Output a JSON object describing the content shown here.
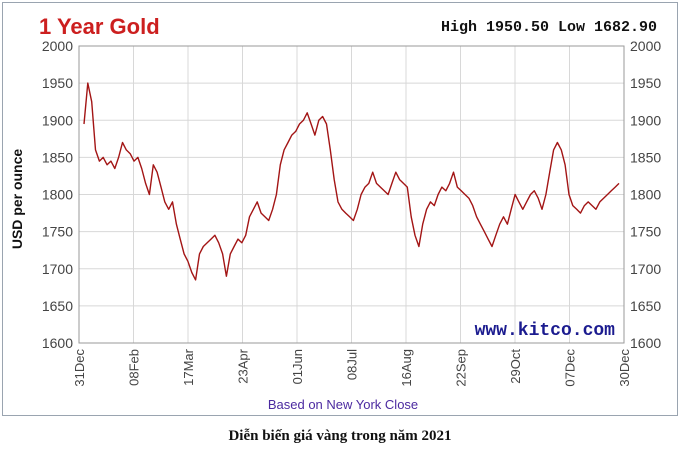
{
  "caption": "Diễn biến giá vàng trong năm 2021",
  "colors": {
    "title": "#cc1f1f",
    "line": "#a31515",
    "grid": "#d8d8d8",
    "footer": "#4b2aa0",
    "watermark": "#1b1b8f",
    "plot_bg": "#ffffff"
  },
  "chart_data": {
    "type": "line",
    "title": "1 Year Gold",
    "high_low": "High 1950.50 Low 1682.90",
    "ylabel": "USD per ounce",
    "xlabel": "Based on New York Close",
    "watermark": "www.kitco.com",
    "ylim": [
      1600,
      2000
    ],
    "yticks": [
      1600,
      1650,
      1700,
      1750,
      1800,
      1850,
      1900,
      1950,
      2000
    ],
    "xticks": [
      "31Dec",
      "08Feb",
      "17Mar",
      "23Apr",
      "01Jun",
      "08Jul",
      "16Aug",
      "22Sep",
      "29Oct",
      "07Dec",
      "30Dec"
    ],
    "grid": true,
    "series": [
      {
        "values": [
          1895,
          1950,
          1925,
          1860,
          1845,
          1850,
          1840,
          1845,
          1835,
          1850,
          1870,
          1860,
          1855,
          1845,
          1850,
          1835,
          1815,
          1800,
          1840,
          1830,
          1810,
          1790,
          1780,
          1790,
          1760,
          1740,
          1720,
          1710,
          1695,
          1685,
          1720,
          1730,
          1735,
          1740,
          1745,
          1735,
          1720,
          1690,
          1720,
          1730,
          1740,
          1735,
          1745,
          1770,
          1780,
          1790,
          1775,
          1770,
          1765,
          1780,
          1800,
          1840,
          1860,
          1870,
          1880,
          1885,
          1895,
          1900,
          1910,
          1895,
          1880,
          1900,
          1905,
          1895,
          1860,
          1820,
          1790,
          1780,
          1775,
          1770,
          1765,
          1780,
          1800,
          1810,
          1815,
          1830,
          1815,
          1810,
          1805,
          1800,
          1815,
          1830,
          1820,
          1815,
          1810,
          1770,
          1745,
          1730,
          1760,
          1780,
          1790,
          1785,
          1800,
          1810,
          1805,
          1815,
          1830,
          1810,
          1805,
          1800,
          1795,
          1785,
          1770,
          1760,
          1750,
          1740,
          1730,
          1745,
          1760,
          1770,
          1760,
          1780,
          1800,
          1790,
          1780,
          1790,
          1800,
          1805,
          1795,
          1780,
          1800,
          1830,
          1860,
          1870,
          1860,
          1840,
          1800,
          1785,
          1780,
          1775,
          1785,
          1790,
          1785,
          1780,
          1790,
          1795,
          1800,
          1805,
          1810,
          1815
        ]
      }
    ]
  }
}
